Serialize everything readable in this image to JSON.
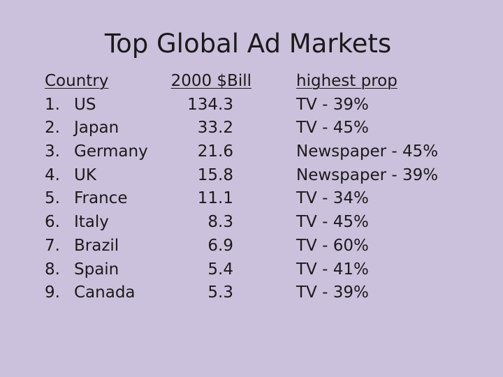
{
  "slide": {
    "title": "Top Global Ad Markets"
  },
  "table": {
    "headers": {
      "country": "Country",
      "value": "2000 $Bill",
      "prop": "highest prop"
    },
    "rows": [
      {
        "rank": "1.",
        "country": "US",
        "value": "134.3",
        "prop": "TV - 39%"
      },
      {
        "rank": "2.",
        "country": "Japan",
        "value": "33.2",
        "prop": "TV - 45%"
      },
      {
        "rank": "3.",
        "country": "Germany",
        "value": "21.6",
        "prop": "Newspaper - 45%"
      },
      {
        "rank": "4.",
        "country": "UK",
        "value": "15.8",
        "prop": "Newspaper - 39%"
      },
      {
        "rank": "5.",
        "country": "France",
        "value": "11.1",
        "prop": "TV - 34%"
      },
      {
        "rank": "6.",
        "country": "Italy",
        "value": "8.3",
        "prop": "TV - 45%"
      },
      {
        "rank": "7.",
        "country": "Brazil",
        "value": "6.9",
        "prop": "TV - 60%"
      },
      {
        "rank": "8.",
        "country": "Spain",
        "value": "5.4",
        "prop": "TV - 41%"
      },
      {
        "rank": "9.",
        "country": "Canada",
        "value": "5.3",
        "prop": "TV - 39%"
      }
    ]
  }
}
